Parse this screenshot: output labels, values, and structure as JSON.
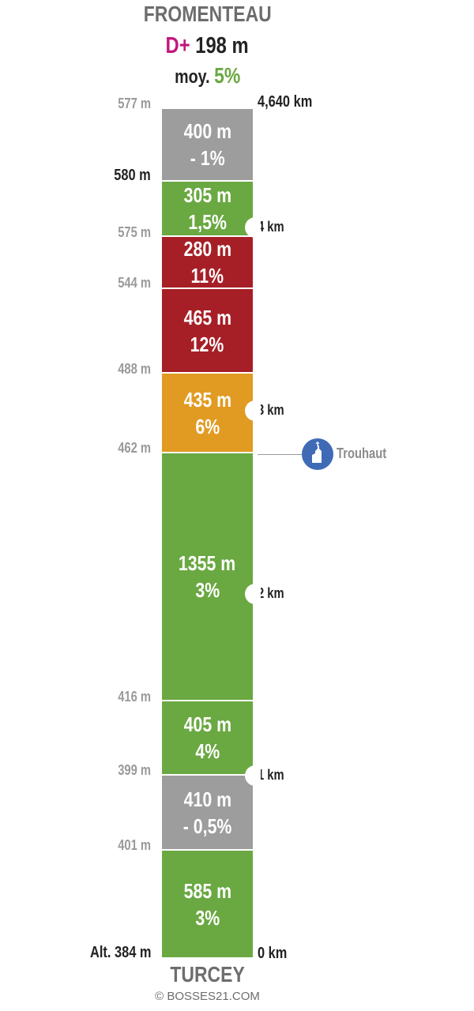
{
  "header": {
    "end_name": "FROMENTEAU",
    "dplus_label": "D+",
    "dplus_value": "198 m",
    "moy_label": "moy.",
    "moy_value": "5%"
  },
  "footer": {
    "start_name": "TURCEY",
    "copyright": "© BOSSES21.COM"
  },
  "colors": {
    "green": "#6aa842",
    "grey": "#9d9d9d",
    "red": "#a61f26",
    "orange": "#e19b22",
    "magenta": "#c2177d",
    "poi_blue": "#3f6ab6"
  },
  "segments": [
    {
      "length": "400 m",
      "grade": "- 1%",
      "color": "grey"
    },
    {
      "length": "305 m",
      "grade": "1,5%",
      "color": "green"
    },
    {
      "length": "280 m",
      "grade": "11%",
      "color": "red"
    },
    {
      "length": "465 m",
      "grade": "12%",
      "color": "red"
    },
    {
      "length": "435 m",
      "grade": "6%",
      "color": "orange"
    },
    {
      "length": "1355 m",
      "grade": "3%",
      "color": "green"
    },
    {
      "length": "405 m",
      "grade": "4%",
      "color": "green"
    },
    {
      "length": "410 m",
      "grade": "- 0,5%",
      "color": "grey"
    },
    {
      "length": "585 m",
      "grade": "3%",
      "color": "green"
    }
  ],
  "altitudes": [
    {
      "label": "577 m",
      "style": "grey"
    },
    {
      "label": "580 m",
      "style": "dark"
    },
    {
      "label": "575 m",
      "style": "grey"
    },
    {
      "label": "544 m",
      "style": "grey"
    },
    {
      "label": "488 m",
      "style": "grey"
    },
    {
      "label": "462 m",
      "style": "grey"
    },
    {
      "label": "416 m",
      "style": "grey"
    },
    {
      "label": "399 m",
      "style": "grey"
    },
    {
      "label": "401 m",
      "style": "grey"
    },
    {
      "label": "Alt. 384 m",
      "style": "dark"
    }
  ],
  "km_marks": [
    "4,640 km",
    "4 km",
    "3 km",
    "2 km",
    "1 km",
    "0 km"
  ],
  "poi": {
    "label": "Trouhaut",
    "icon": "church-icon"
  }
}
